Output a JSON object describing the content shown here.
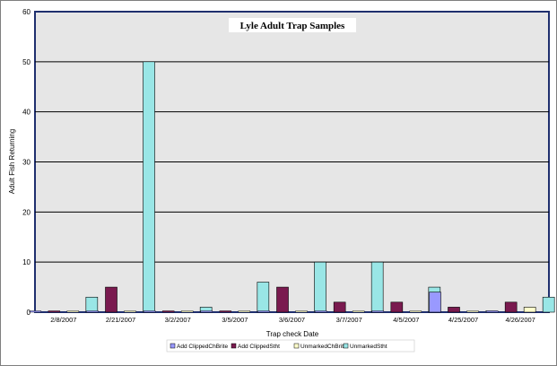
{
  "chart_data": {
    "type": "bar",
    "title": "Lyle Adult Trap Samples",
    "xlabel": "Trap check Date",
    "ylabel": "Adult Fish Returning",
    "ylim": [
      0,
      60
    ],
    "yticks": [
      0,
      10,
      20,
      30,
      40,
      50,
      60
    ],
    "grid": true,
    "legend_position": "bottom",
    "categories": [
      "2/8/2007",
      "2/21/2007",
      "3/2/2007",
      "3/5/2007",
      "3/6/2007",
      "3/7/2007",
      "4/5/2007",
      "4/25/2007",
      "4/26/2007"
    ],
    "series": [
      {
        "name": "Add ClippedChBrite",
        "color": "#9999ff",
        "values": [
          0,
          0,
          0,
          0,
          0,
          0,
          0,
          4,
          0
        ]
      },
      {
        "name": "Add ClippedStht",
        "color": "#7a1a4f",
        "values": [
          0,
          5,
          0,
          0,
          5,
          2,
          2,
          1,
          2
        ]
      },
      {
        "name": "UnmarkedChBrite",
        "color": "#ffffcc",
        "values": [
          0,
          0,
          0,
          0,
          0,
          0,
          0,
          0,
          1
        ]
      },
      {
        "name": "UnmarkedStht",
        "color": "#99e6e6",
        "values": [
          3,
          50,
          1,
          6,
          10,
          10,
          5,
          0,
          3
        ]
      }
    ]
  },
  "colors": {
    "plot_background": "#e6e6e6",
    "plot_border": "#1f2f6e",
    "gridline": "#000000"
  }
}
